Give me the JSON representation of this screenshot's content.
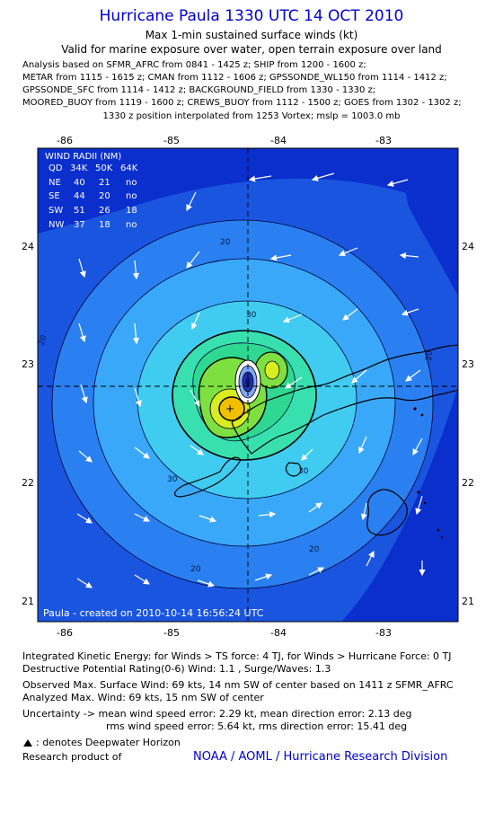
{
  "header": {
    "title": "Hurricane Paula 1330 UTC 14 OCT 2010",
    "subtitle": "Max 1-min sustained surface winds (kt)",
    "valid": "Valid for marine exposure over water, open terrain exposure over land",
    "analysis_lines": [
      "Analysis based on SFMR_AFRC from 0841 - 1425 z; SHIP from 1200 - 1600 z;",
      "METAR from 1115 - 1615 z; CMAN from 1112 - 1606 z; GPSSONDE_WL150 from 1114 - 1412 z;",
      "GPSSONDE_SFC from 1114 - 1412 z; BACKGROUND_FIELD from 1330 - 1330 z;",
      "MOORED_BUOY from 1119 - 1600 z; CREWS_BUOY from 1112 - 1500 z; GOES from 1302 - 1302 z;"
    ],
    "position_line": "1330 z position interpolated from 1253 Vortex; mslp = 1003.0 mb"
  },
  "map": {
    "lon_ticks": [
      "-86",
      "-85",
      "-84",
      "-83"
    ],
    "lat_ticks": [
      "24",
      "23",
      "22",
      "21"
    ],
    "contour_labels": [
      "20",
      "20",
      "20",
      "20",
      "30",
      "30",
      "30",
      "20"
    ],
    "created_label": "Paula - created on 2010-10-14 16:56:24 UTC",
    "colors": {
      "ocean_outer": "#0a2fcc",
      "band1": "#1a55e0",
      "band2": "#2a80f0",
      "band3": "#3aa8f8",
      "band4": "#40ccf0",
      "band5": "#38e0b0",
      "band6": "#7ee040",
      "band7": "#d8ec20",
      "band8": "#f0c000",
      "eye": "#0c1a80"
    }
  },
  "wind_radii": {
    "title": "WIND RADII (NM)",
    "headers": [
      "QD",
      "34K",
      "50K",
      "64K"
    ],
    "rows": [
      [
        "NE",
        "40",
        "21",
        "no"
      ],
      [
        "SE",
        "44",
        "20",
        "no"
      ],
      [
        "SW",
        "51",
        "26",
        "18"
      ],
      [
        "NW",
        "37",
        "18",
        "no"
      ]
    ]
  },
  "footer": {
    "ike": "Integrated Kinetic Energy:  for Winds > TS force: 4 TJ,  for Winds > Hurricane Force: 0 TJ",
    "dpr": "Destructive Potential Rating(0-6)   Wind: 1.1 , Surge/Waves: 1.3",
    "obs_max": "Observed Max. Surface Wind: 69 kts, 14 nm SW of center based on 1411 z SFMR_AFRC",
    "analyzed_max": "Analyzed Max. Wind: 69 kts, 15 nm SW of center",
    "uncert1": "Uncertainty -> mean wind speed error: 2.29 kt,   mean direction error: 2.13 deg",
    "uncert2": "rms wind speed error: 5.64 kt,   rms direction error: 15.41 deg",
    "deepwater": ": denotes Deepwater Horizon",
    "research": "Research product of",
    "credit": "NOAA / AOML / Hurricane Research Division"
  }
}
